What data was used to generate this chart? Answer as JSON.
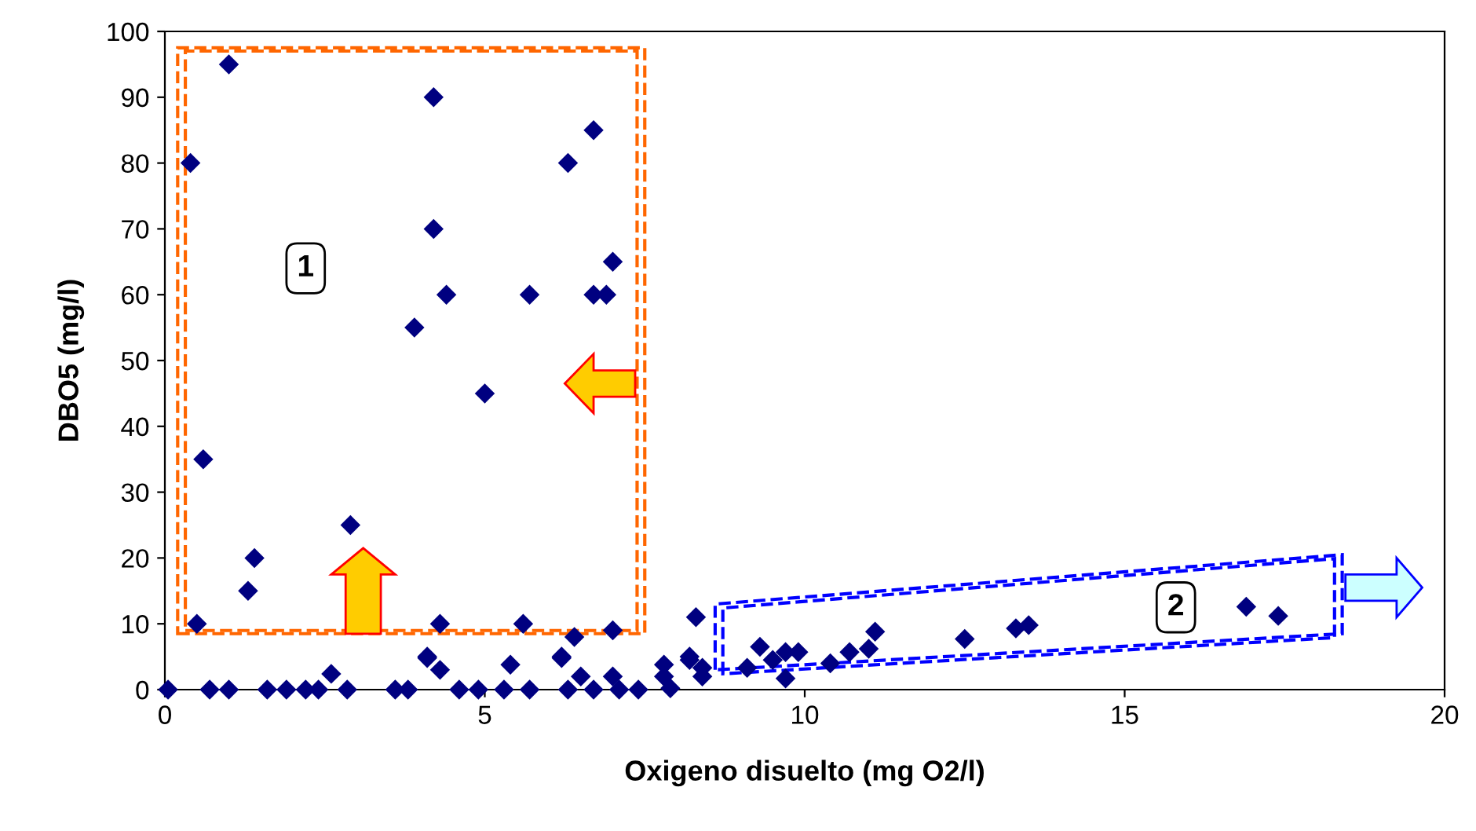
{
  "chart_data": {
    "type": "scatter",
    "xlabel": "Oxigeno disuelto (mg O2/l)",
    "ylabel": "DBO5 (mg/l)",
    "marker": "diamond",
    "grid": false,
    "xlim": [
      0,
      20
    ],
    "ylim": [
      0,
      100
    ],
    "xticks": [
      0,
      5,
      10,
      15,
      20
    ],
    "yticks": [
      0,
      10,
      20,
      30,
      40,
      50,
      60,
      70,
      80,
      90,
      100
    ],
    "annotations": [
      {
        "text": "1",
        "x": 2.2,
        "y": 64
      },
      {
        "text": "2",
        "x": 15.8,
        "y": 12.5
      }
    ],
    "series": [
      {
        "color": "#000080",
        "x": [
          1.0,
          0.4,
          4.2,
          6.7,
          6.3,
          4.2,
          7.0,
          4.4,
          5.7,
          6.7,
          6.9,
          3.9,
          5.0,
          0.6,
          2.9,
          1.4,
          1.3,
          0.5,
          4.3,
          5.6,
          7.0,
          6.4,
          8.3,
          4.1,
          6.2,
          0.05,
          0.7,
          1.0,
          1.6,
          1.9,
          2.2,
          2.4,
          2.6,
          2.85,
          3.6,
          3.8,
          4.1,
          4.3,
          4.6,
          4.9,
          5.3,
          5.4,
          5.7,
          6.2,
          6.3,
          6.5,
          6.7,
          7.0,
          7.1,
          7.4,
          7.8,
          7.9,
          8.2,
          8.4,
          7.8,
          8.2,
          8.4,
          9.3,
          9.1,
          9.5,
          9.7,
          9.9,
          9.7,
          10.4,
          10.7,
          11.0,
          11.1,
          12.5,
          13.3,
          13.5,
          16.9,
          17.4
        ],
        "values": [
          95,
          80,
          90,
          85,
          80,
          70,
          65,
          60,
          60,
          60,
          60,
          55,
          45,
          35,
          25,
          20,
          15,
          10,
          10,
          10,
          9,
          8,
          11,
          5,
          5,
          0,
          0,
          0,
          0,
          0,
          0,
          0,
          2.4,
          0,
          0,
          0,
          4.8,
          3,
          0,
          0,
          0,
          3.8,
          0,
          4.8,
          0,
          2,
          0,
          2,
          0,
          0,
          2,
          0.2,
          5,
          2,
          3.8,
          4.5,
          3.3,
          6.5,
          3.3,
          4.5,
          5.7,
          5.7,
          1.7,
          4,
          5.7,
          6.2,
          8.8,
          7.7,
          9.3,
          9.8,
          12.6,
          11.2
        ]
      }
    ]
  }
}
